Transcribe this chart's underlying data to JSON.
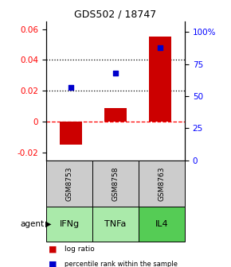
{
  "title": "GDS502 / 18747",
  "samples": [
    "GSM8753",
    "GSM8758",
    "GSM8763"
  ],
  "agents": [
    "IFNg",
    "TNFa",
    "IL4"
  ],
  "log_ratios": [
    -0.015,
    0.009,
    0.055
  ],
  "percentile_ranks": [
    57,
    68,
    88
  ],
  "ylim_left": [
    -0.025,
    0.065
  ],
  "ylim_right": [
    0,
    108.33
  ],
  "left_yticks": [
    -0.02,
    0.0,
    0.02,
    0.04,
    0.06
  ],
  "right_yticks": [
    0,
    25,
    50,
    75,
    100
  ],
  "bar_color": "#cc0000",
  "dot_color": "#0000cc",
  "agent_color_light": "#aaffaa",
  "agent_color_dark": "#66dd66",
  "sample_bg_color": "#cccccc",
  "legend_bar_label": "log ratio",
  "legend_dot_label": "percentile rank within the sample",
  "bar_width": 0.5
}
